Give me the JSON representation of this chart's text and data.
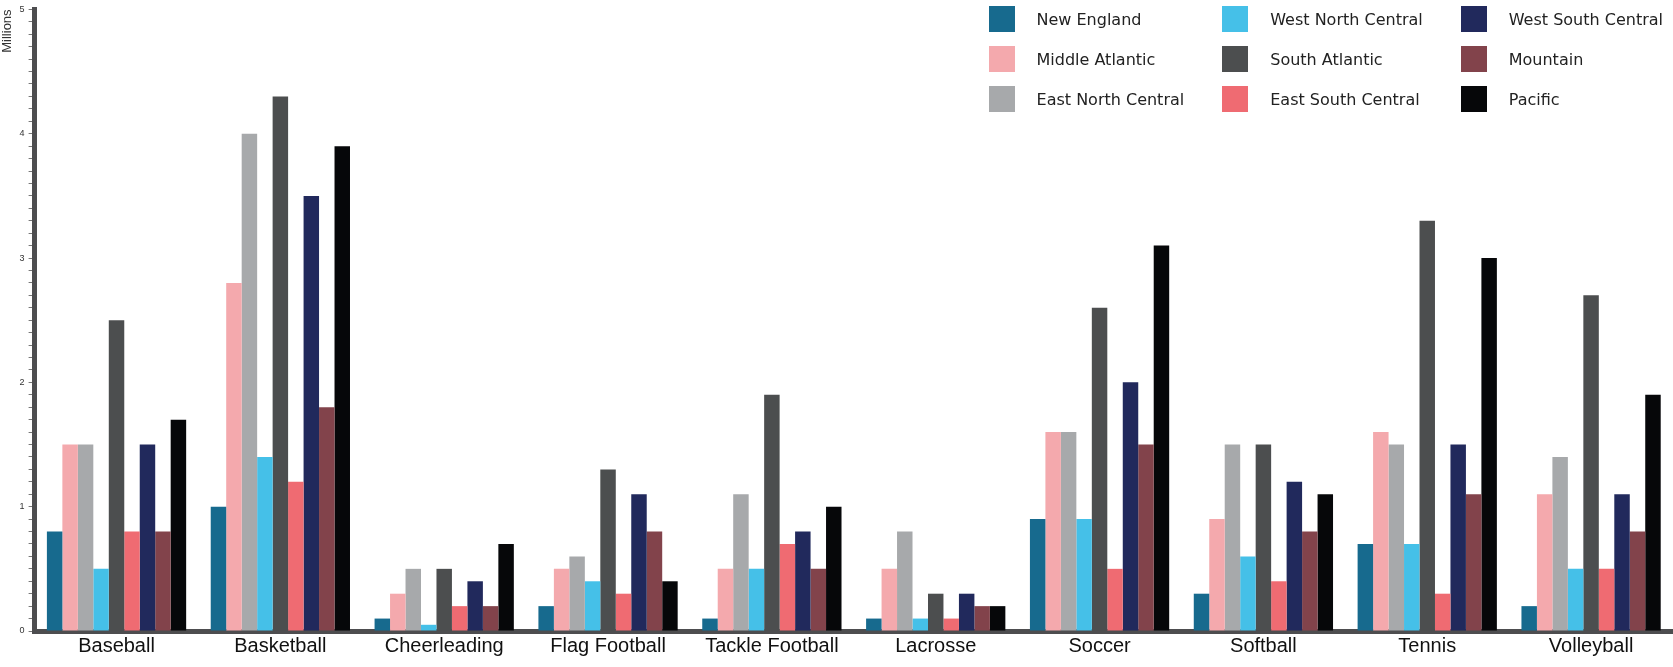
{
  "chart_data": {
    "type": "bar",
    "ylabel": "Millions",
    "categories": [
      "Baseball",
      "Basketball",
      "Cheerleading",
      "Flag Football",
      "Tackle Football",
      "Lacrosse",
      "Soccer",
      "Softball",
      "Tennis",
      "Volleyball"
    ],
    "series": [
      {
        "name": "New England",
        "color": "#176a8e",
        "values": [
          0.8,
          1.0,
          0.1,
          0.2,
          0.1,
          0.1,
          0.9,
          0.3,
          0.7,
          0.2
        ]
      },
      {
        "name": "Middle Atlantic",
        "color": "#f4a9ad",
        "values": [
          1.5,
          2.8,
          0.3,
          0.5,
          0.5,
          0.5,
          1.6,
          0.9,
          1.6,
          1.1
        ]
      },
      {
        "name": "East North Central",
        "color": "#a7a9ab",
        "values": [
          1.5,
          4.0,
          0.5,
          0.6,
          1.1,
          0.8,
          1.6,
          1.5,
          1.5,
          1.4
        ]
      },
      {
        "name": "West North Central",
        "color": "#45c0e8",
        "values": [
          0.5,
          1.4,
          0.05,
          0.4,
          0.5,
          0.1,
          0.9,
          0.6,
          0.7,
          0.5
        ]
      },
      {
        "name": "South Atlantic",
        "color": "#4c4e4f",
        "values": [
          2.5,
          4.3,
          0.5,
          1.3,
          1.9,
          0.3,
          2.6,
          1.5,
          3.3,
          2.7
        ]
      },
      {
        "name": "East South Central",
        "color": "#ef6b72",
        "values": [
          0.8,
          1.2,
          0.2,
          0.3,
          0.7,
          0.1,
          0.5,
          0.4,
          0.3,
          0.5
        ]
      },
      {
        "name": "West South Central",
        "color": "#21295c",
        "values": [
          1.5,
          3.5,
          0.4,
          1.1,
          0.8,
          0.3,
          2.0,
          1.2,
          1.5,
          1.1
        ]
      },
      {
        "name": "Mountain",
        "color": "#82434b",
        "values": [
          0.8,
          1.8,
          0.2,
          0.8,
          0.5,
          0.2,
          1.5,
          0.8,
          1.1,
          0.8
        ]
      },
      {
        "name": "Pacific",
        "color": "#060709",
        "values": [
          1.7,
          3.9,
          0.7,
          0.4,
          1.0,
          0.2,
          3.1,
          1.1,
          3.0,
          1.9
        ]
      }
    ],
    "ylim": [
      0,
      5
    ],
    "yticks": [
      0,
      {
        "value": 0.1,
        "label": null
      },
      {
        "value": 0.2,
        "label": null
      },
      {
        "value": 0.3,
        "label": null
      },
      {
        "value": 0.4,
        "label": null
      },
      {
        "value": 0.5,
        "label": null
      },
      {
        "value": 0.6,
        "label": null
      },
      {
        "value": 0.7,
        "label": null
      },
      {
        "value": 0.8,
        "label": null
      },
      {
        "value": 0.9,
        "label": null
      },
      1,
      {
        "value": 1.1,
        "label": null
      },
      {
        "value": 1.2,
        "label": null
      },
      {
        "value": 1.3,
        "label": null
      },
      {
        "value": 1.4,
        "label": null
      },
      {
        "value": 1.5,
        "label": null
      },
      {
        "value": 1.6,
        "label": null
      },
      {
        "value": 1.7,
        "label": null
      },
      {
        "value": 1.8,
        "label": null
      },
      {
        "value": 1.9,
        "label": null
      },
      2,
      {
        "value": 2.1,
        "label": null
      },
      {
        "value": 2.2,
        "label": null
      },
      {
        "value": 2.3,
        "label": null
      },
      {
        "value": 2.4,
        "label": null
      },
      {
        "value": 2.5,
        "label": null
      },
      {
        "value": 2.6,
        "label": null
      },
      {
        "value": 2.7,
        "label": null
      },
      {
        "value": 2.8,
        "label": null
      },
      {
        "value": 2.9,
        "label": null
      },
      3,
      {
        "value": 3.1,
        "label": null
      },
      {
        "value": 3.2,
        "label": null
      },
      {
        "value": 3.3,
        "label": null
      },
      {
        "value": 3.4,
        "label": null
      },
      {
        "value": 3.5,
        "label": null
      },
      {
        "value": 3.6,
        "label": null
      },
      {
        "value": 3.7,
        "label": null
      },
      {
        "value": 3.8,
        "label": null
      },
      {
        "value": 3.9,
        "label": null
      },
      4,
      {
        "value": 4.1,
        "label": null
      },
      {
        "value": 4.2,
        "label": null
      },
      {
        "value": 4.3,
        "label": null
      },
      {
        "value": 4.4,
        "label": null
      },
      {
        "value": 4.5,
        "label": null
      },
      {
        "value": 4.6,
        "label": null
      },
      {
        "value": 4.7,
        "label": null
      },
      {
        "value": 4.8,
        "label": null
      },
      {
        "value": 4.9,
        "label": null
      },
      5
    ],
    "grid": false,
    "legend": "top right"
  }
}
